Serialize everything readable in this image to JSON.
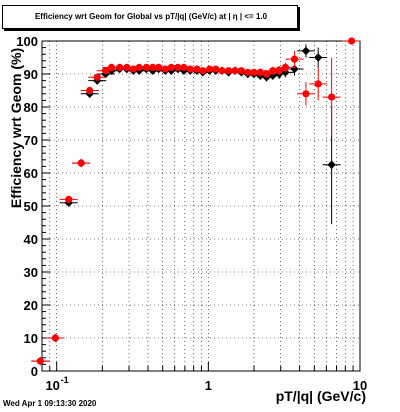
{
  "chart_data": {
    "type": "scatter",
    "title": "Efficiency wrt Geom for Global vs pT/|q| (GeV/c) at | η | <= 1.0",
    "xlabel": "pT/|q| (GeV/c)",
    "ylabel": "Efficiency wrt Geom (%)",
    "x_scale": "log",
    "xlim": [
      0.08,
      10
    ],
    "ylim": [
      0,
      100
    ],
    "y_ticks": [
      "0",
      "10",
      "20",
      "30",
      "40",
      "50",
      "60",
      "70",
      "80",
      "90",
      "100"
    ],
    "x_ticks": [
      {
        "value": 0.1,
        "label": "10",
        "exp": "-1"
      },
      {
        "value": 1,
        "label": "1",
        "exp": ""
      },
      {
        "value": 10,
        "label": "10",
        "exp": ""
      }
    ],
    "grid": true,
    "series": [
      {
        "color": "#000000",
        "marker": "diamond",
        "points": [
          [
            0.078,
            3,
            0.5
          ],
          [
            0.098,
            10,
            0.8
          ],
          [
            0.12,
            51,
            1.0
          ],
          [
            0.145,
            63,
            1.2
          ],
          [
            0.165,
            84,
            1.2
          ],
          [
            0.185,
            88,
            1.0
          ],
          [
            0.21,
            90,
            1.0
          ],
          [
            0.23,
            91,
            0.8
          ],
          [
            0.26,
            91.5,
            0.8
          ],
          [
            0.29,
            91.5,
            0.8
          ],
          [
            0.32,
            91,
            0.8
          ],
          [
            0.35,
            91,
            0.8
          ],
          [
            0.39,
            91.5,
            0.8
          ],
          [
            0.43,
            91,
            0.8
          ],
          [
            0.47,
            91.5,
            0.8
          ],
          [
            0.52,
            91,
            0.8
          ],
          [
            0.57,
            91,
            0.8
          ],
          [
            0.63,
            91.5,
            0.8
          ],
          [
            0.69,
            91,
            0.8
          ],
          [
            0.76,
            91,
            0.8
          ],
          [
            0.84,
            91,
            0.8
          ],
          [
            0.92,
            90.5,
            0.8
          ],
          [
            1.02,
            91,
            0.8
          ],
          [
            1.12,
            91,
            0.8
          ],
          [
            1.23,
            91,
            0.9
          ],
          [
            1.36,
            90.5,
            0.9
          ],
          [
            1.5,
            91,
            0.9
          ],
          [
            1.65,
            90.5,
            1.0
          ],
          [
            1.82,
            90,
            1.0
          ],
          [
            2.0,
            90,
            1.0
          ],
          [
            2.2,
            89.5,
            1.2
          ],
          [
            2.42,
            89,
            1.2
          ],
          [
            2.66,
            89.5,
            1.2
          ],
          [
            2.93,
            90,
            1.5
          ],
          [
            3.22,
            90.5,
            1.5
          ],
          [
            3.7,
            91.5,
            2.0
          ],
          [
            4.4,
            97,
            2.0
          ],
          [
            5.3,
            95,
            3.0
          ],
          [
            6.5,
            62.5,
            18
          ]
        ]
      },
      {
        "color": "#ff0000",
        "marker": "circle",
        "points": [
          [
            0.078,
            3,
            0.5
          ],
          [
            0.098,
            10,
            0.8
          ],
          [
            0.12,
            52,
            1.0
          ],
          [
            0.145,
            63,
            1.2
          ],
          [
            0.165,
            85,
            1.2
          ],
          [
            0.185,
            89,
            1.0
          ],
          [
            0.21,
            91,
            1.0
          ],
          [
            0.23,
            92,
            0.8
          ],
          [
            0.26,
            92,
            0.8
          ],
          [
            0.29,
            92,
            0.8
          ],
          [
            0.32,
            91.5,
            0.8
          ],
          [
            0.35,
            92,
            0.8
          ],
          [
            0.39,
            92,
            0.8
          ],
          [
            0.43,
            92,
            0.8
          ],
          [
            0.47,
            92,
            0.8
          ],
          [
            0.52,
            91.5,
            0.8
          ],
          [
            0.57,
            92,
            0.8
          ],
          [
            0.63,
            92,
            0.8
          ],
          [
            0.69,
            92,
            0.8
          ],
          [
            0.76,
            91.5,
            0.8
          ],
          [
            0.84,
            91.5,
            0.8
          ],
          [
            0.92,
            91,
            0.8
          ],
          [
            1.02,
            91.5,
            0.8
          ],
          [
            1.12,
            91.5,
            0.8
          ],
          [
            1.23,
            91,
            0.9
          ],
          [
            1.36,
            91,
            0.9
          ],
          [
            1.5,
            91,
            0.9
          ],
          [
            1.65,
            91,
            1.0
          ],
          [
            1.82,
            90.5,
            1.0
          ],
          [
            2.0,
            90.5,
            1.0
          ],
          [
            2.2,
            90.5,
            1.2
          ],
          [
            2.42,
            90,
            1.2
          ],
          [
            2.66,
            91,
            1.2
          ],
          [
            2.93,
            91,
            1.5
          ],
          [
            3.22,
            92,
            1.5
          ],
          [
            3.7,
            94.5,
            2.5
          ],
          [
            4.4,
            84,
            3.5
          ],
          [
            5.3,
            87,
            5.0
          ],
          [
            6.5,
            83,
            12
          ],
          [
            8.8,
            100,
            1.0
          ]
        ]
      }
    ]
  },
  "footer": {
    "datestamp": "Wed Apr  1 09:13:30 2020"
  }
}
